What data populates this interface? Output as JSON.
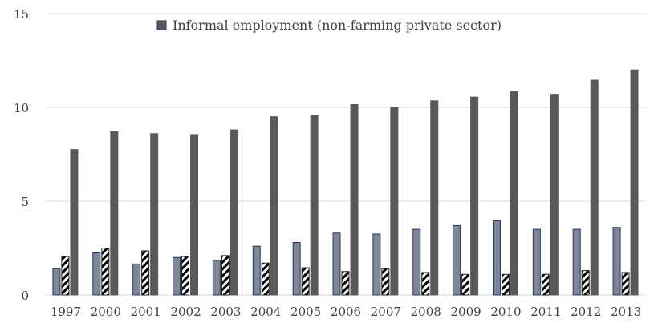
{
  "chart_data": {
    "type": "bar",
    "categories": [
      "1997",
      "2000",
      "2001",
      "2002",
      "2003",
      "2004",
      "2005",
      "2006",
      "2007",
      "2008",
      "2009",
      "2010",
      "2011",
      "2012",
      "2013"
    ],
    "series": [
      {
        "name": "",
        "pattern": "solid-blue",
        "values": [
          1.4,
          2.25,
          1.65,
          2.0,
          1.85,
          2.6,
          2.8,
          3.3,
          3.25,
          3.5,
          3.7,
          3.95,
          3.5,
          3.5,
          3.6
        ]
      },
      {
        "name": "",
        "pattern": "hatched",
        "values": [
          2.05,
          2.5,
          2.35,
          2.05,
          2.1,
          1.7,
          1.45,
          1.25,
          1.4,
          1.2,
          1.1,
          1.1,
          1.1,
          1.3,
          1.2
        ]
      },
      {
        "name": "Informal employment (non-farming private sector)",
        "pattern": "solid-dark",
        "values": [
          7.75,
          8.7,
          8.6,
          8.55,
          8.8,
          9.5,
          9.55,
          10.15,
          10.0,
          10.35,
          10.55,
          10.85,
          10.7,
          11.45,
          12.0
        ]
      }
    ],
    "ylim": [
      0,
      15
    ],
    "yticks": [
      0,
      5,
      10,
      15
    ],
    "grid": true,
    "legend_position": "top",
    "colors": {
      "series1": "#7f8796",
      "series1_border": "#1f3864",
      "series3": "#595959",
      "grid": "#d9d9d9",
      "text": "#404040"
    }
  }
}
